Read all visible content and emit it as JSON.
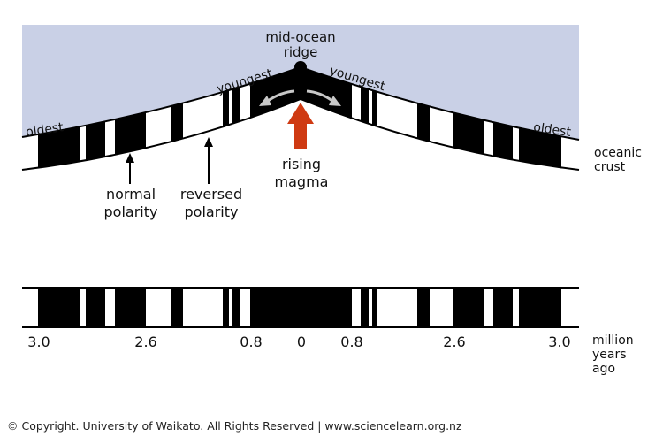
{
  "colors": {
    "ocean": "#c9d0e6",
    "stripe": "#000000",
    "crust_bg": "#ffffff",
    "magma_arrow": "#cf3a12",
    "spread_arrow": "#c8c8c8"
  },
  "labels": {
    "ridge_line1": "mid-ocean",
    "ridge_line2": "ridge",
    "youngest_left": "youngest",
    "youngest_right": "youngest",
    "oldest_left": "oldest",
    "oldest_right": "oldest",
    "oceanic_line1": "oceanic",
    "oceanic_line2": "crust",
    "magma_line1": "rising",
    "magma_line2": "magma",
    "normal_line1": "normal",
    "normal_line2": "polarity",
    "reversed_line1": "reversed",
    "reversed_line2": "polarity",
    "myr_line1": "million",
    "myr_line2": "years",
    "myr_line3": "ago"
  },
  "scale": {
    "ticks": [
      "3.0",
      "2.6",
      "0.8",
      "0",
      "0.8",
      "2.6",
      "3.0"
    ]
  },
  "copyright": "© Copyright. University of Waikato. All Rights Reserved | www.sciencelearn.org.nz"
}
